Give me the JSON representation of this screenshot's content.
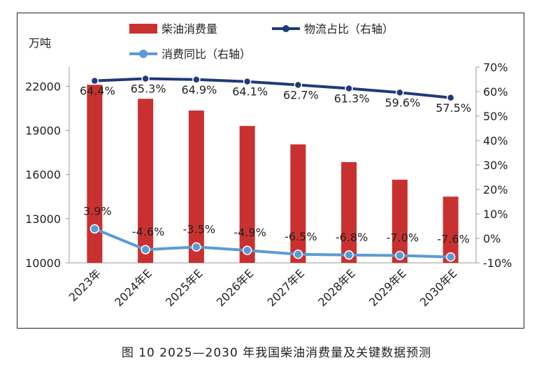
{
  "chart_data": {
    "type": "bar+line",
    "categories": [
      "2023年",
      "2024年E",
      "2025年E",
      "2026年E",
      "2027年E",
      "2028年E",
      "2029年E",
      "2030年E"
    ],
    "y_left": {
      "unit_label": "万吨",
      "ylim": [
        10000,
        23300
      ],
      "ticks": [
        10000,
        13000,
        16000,
        19000,
        22000
      ]
    },
    "y_right": {
      "ylim": [
        -10,
        70
      ],
      "ticks": [
        "-10%",
        "0%",
        "10%",
        "20%",
        "30%",
        "40%",
        "50%",
        "60%",
        "70%"
      ],
      "tick_values": [
        -10,
        0,
        10,
        20,
        30,
        40,
        50,
        60,
        70
      ]
    },
    "series": [
      {
        "name": "柴油消费量",
        "kind": "bar",
        "axis": "left",
        "color": "#c8312f",
        "values": [
          22100,
          21150,
          20350,
          19300,
          18050,
          16850,
          15650,
          14500
        ]
      },
      {
        "name": "物流占比（右轴）",
        "kind": "line",
        "axis": "right",
        "color": "#1f3a7a",
        "values": [
          64.4,
          65.3,
          64.9,
          64.1,
          62.7,
          61.3,
          59.6,
          57.5
        ],
        "labels": [
          "64.4%",
          "65.3%",
          "64.9%",
          "64.1%",
          "62.7%",
          "61.3%",
          "59.6%",
          "57.5%"
        ]
      },
      {
        "name": "消费同比（右轴）",
        "kind": "line",
        "axis": "right",
        "color": "#5b9bd5",
        "values": [
          3.9,
          -4.6,
          -3.5,
          -4.9,
          -6.5,
          -6.8,
          -7.0,
          -7.6
        ],
        "labels": [
          "3.9%",
          "-4.6%",
          "-3.5%",
          "-4.9%",
          "-6.5%",
          "-6.8%",
          "-7.0%",
          "-7.6%"
        ]
      }
    ],
    "legend_placement": "top",
    "grid": false
  },
  "caption": "图 10  2025—2030 年我国柴油消费量及关键数据预测"
}
